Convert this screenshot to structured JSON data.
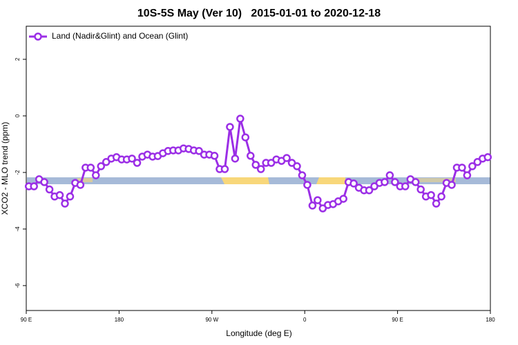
{
  "chart_data": {
    "type": "line",
    "title": "10S-5S May (Ver 10)   2015-01-01 to 2020-12-18",
    "xlabel": "Longitude (deg E)",
    "ylabel": "XCO2 - MLO trend (ppm)",
    "xlim": [
      90,
      540
    ],
    "ylim": [
      -6.88,
      3.17
    ],
    "xticks": [
      {
        "value": 90,
        "label": "90 E"
      },
      180,
      {
        "value": 270,
        "label": "90 W"
      },
      {
        "value": 360,
        "label": "0"
      },
      {
        "value": 450,
        "label": "90 E"
      },
      {
        "value": 540,
        "label": "180"
      }
    ],
    "yticks": [
      -6,
      -4,
      -2,
      0,
      2
    ],
    "legend": "top-left",
    "x": [
      92.5,
      97.5,
      102.5,
      107.5,
      112.5,
      117.5,
      122.5,
      127.5,
      132.5,
      137.5,
      142.5,
      147.5,
      152.5,
      157.5,
      162.5,
      167.5,
      172.5,
      177.5,
      182.5,
      187.5,
      192.5,
      197.5,
      202.5,
      207.5,
      212.5,
      217.5,
      222.5,
      227.5,
      232.5,
      237.5,
      242.5,
      247.5,
      252.5,
      257.5,
      262.5,
      267.5,
      272.5,
      277.5,
      282.5,
      287.5,
      292.5,
      297.5,
      302.5,
      307.5,
      312.5,
      317.5,
      322.5,
      327.5,
      332.5,
      337.5,
      342.5,
      347.5,
      352.5,
      357.5,
      362.5,
      367.5,
      372.5,
      377.5,
      382.5,
      387.5,
      392.5,
      397.5,
      402.5,
      407.5,
      412.5,
      417.5,
      422.5,
      427.5,
      432.5,
      437.5,
      442.5,
      447.5,
      452.5,
      457.5,
      462.5,
      467.5,
      472.5,
      477.5,
      482.5,
      487.5,
      492.5,
      497.5,
      502.5,
      507.5,
      512.5,
      517.5,
      522.5,
      527.5,
      532.5,
      537.5
    ],
    "series": [
      {
        "name": "Land (Nadir&Glint) and Ocean (Glint)",
        "color": "#9b2ee6",
        "values": [
          -2.49,
          -2.49,
          -2.24,
          -2.34,
          -2.6,
          -2.85,
          -2.8,
          -3.1,
          -2.85,
          -2.37,
          -2.44,
          -1.83,
          -1.83,
          -2.1,
          -1.78,
          -1.63,
          -1.51,
          -1.46,
          -1.54,
          -1.54,
          -1.51,
          -1.66,
          -1.44,
          -1.37,
          -1.44,
          -1.42,
          -1.32,
          -1.24,
          -1.22,
          -1.22,
          -1.15,
          -1.17,
          -1.22,
          -1.24,
          -1.37,
          -1.37,
          -1.41,
          -1.88,
          -1.88,
          -0.39,
          -1.51,
          -0.1,
          -0.76,
          -1.41,
          -1.73,
          -1.88,
          -1.66,
          -1.66,
          -1.54,
          -1.59,
          -1.49,
          -1.66,
          -1.78,
          -2.1,
          -2.44,
          -3.17,
          -2.98,
          -3.27,
          -3.15,
          -3.12,
          -3.02,
          -2.93,
          -2.34,
          -2.39,
          -2.54,
          -2.63,
          -2.63,
          -2.49,
          -2.37,
          -2.34,
          -2.1,
          -2.34,
          -2.49,
          -2.49,
          -2.24,
          -2.34,
          -2.6,
          -2.85,
          -2.8,
          -3.1,
          -2.85,
          -2.37,
          -2.44,
          -1.83,
          -1.83,
          -2.1,
          -1.78,
          -1.63,
          -1.51,
          -1.46
        ]
      }
    ]
  }
}
